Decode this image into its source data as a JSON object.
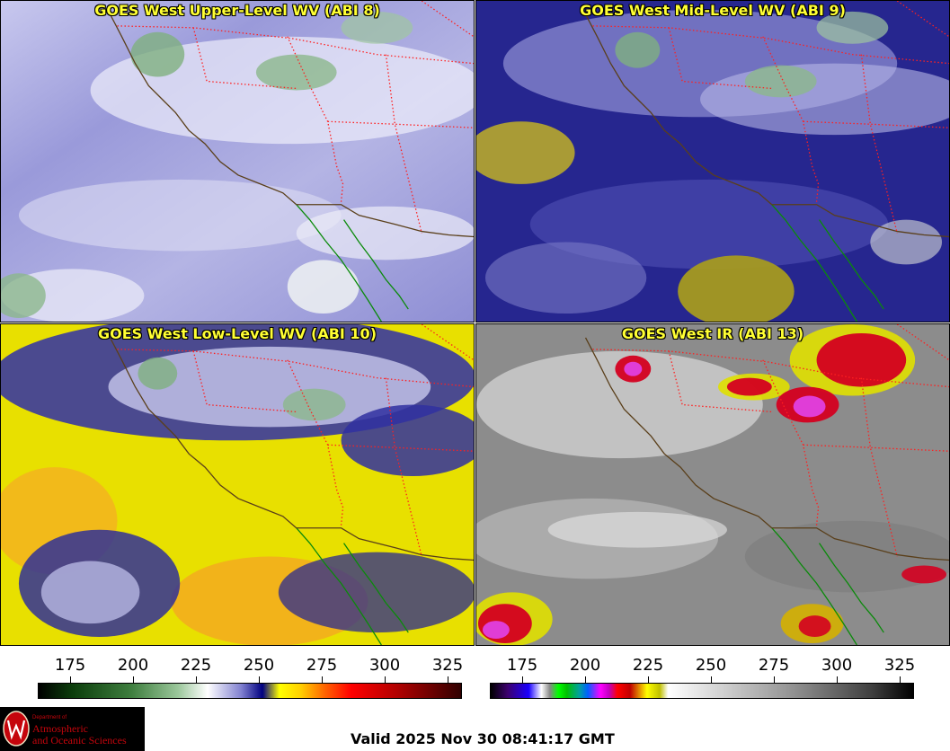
{
  "panels": [
    {
      "title": "GOES West Upper-Level WV (ABI 8)"
    },
    {
      "title": "GOES West Mid-Level WV (ABI 9)"
    },
    {
      "title": "GOES West Low-Level WV (ABI 10)"
    },
    {
      "title": "GOES West IR (ABI 13)"
    }
  ],
  "colorbars": {
    "wv": {
      "ticks": [
        "175",
        "200",
        "225",
        "250",
        "275",
        "300",
        "325"
      ]
    },
    "ir": {
      "ticks": [
        "175",
        "200",
        "225",
        "250",
        "275",
        "300",
        "325"
      ]
    }
  },
  "logo": {
    "dept": "Department of",
    "line1": "Atmospheric",
    "line2": "and Oceanic Sciences"
  },
  "valid_time": "Valid 2025 Nov 30 08:41:17 GMT",
  "colors": {
    "title_text": "#ffff33",
    "state_border": "#ff2020",
    "coastline": "#5a3f1a",
    "mexico_coast": "#0a8a0a",
    "logo_red": "#c5050c"
  }
}
